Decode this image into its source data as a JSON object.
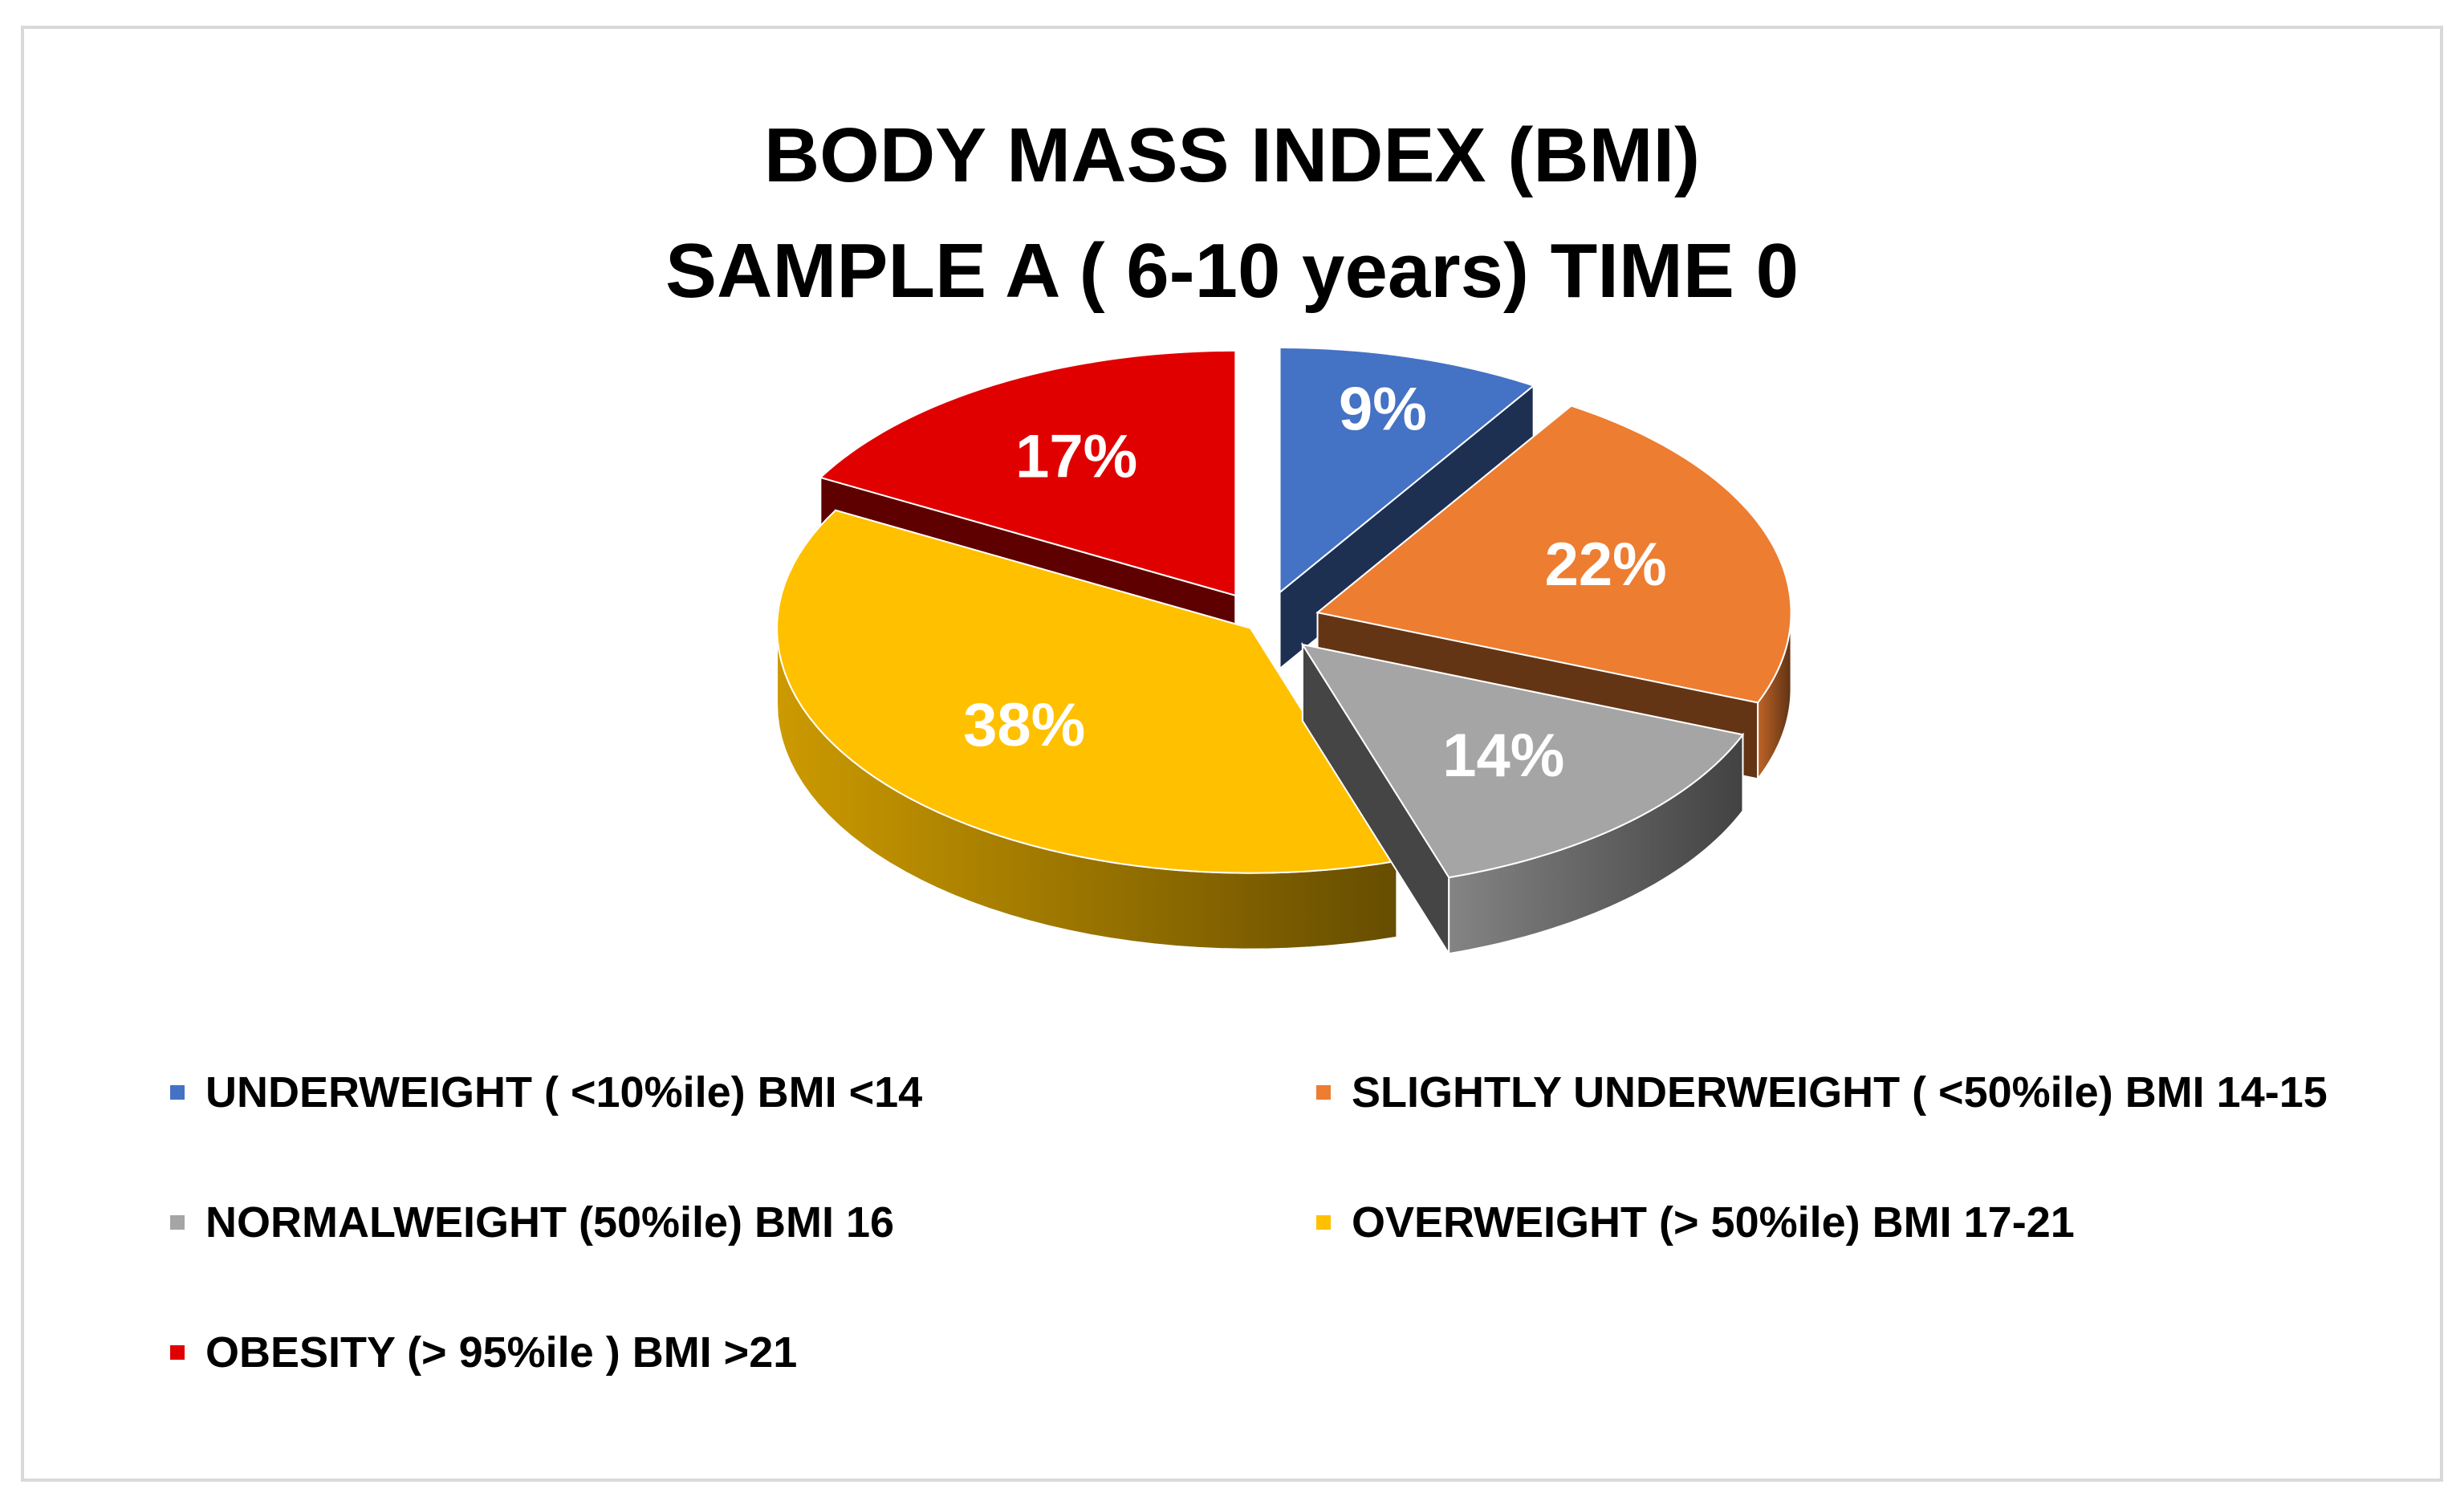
{
  "chart_data": {
    "type": "pie",
    "title": "BODY MASS INDEX (BMI)",
    "subtitle": "SAMPLE A ( 6-10 years) TIME 0",
    "legend_position": "bottom",
    "style": "3d-exploded",
    "slices": [
      {
        "label": "UNDERWEIGHT ( <10%ile)  BMI <14",
        "value": 9,
        "data_label": "9%",
        "color": "#4472c4"
      },
      {
        "label": "SLIGHTLY UNDERWEIGHT ( <50%ile) BMI 14-15",
        "value": 22,
        "data_label": "22%",
        "color": "#ed7d31"
      },
      {
        "label": "NORMALWEIGHT (50%ile) BMI 16",
        "value": 14,
        "data_label": "14%",
        "color": "#a5a5a5"
      },
      {
        "label": "OVERWEIGHT (> 50%ile) BMI 17-21",
        "value": 38,
        "data_label": "38%",
        "color": "#ffc000"
      },
      {
        "label": "OBESITY (> 95%ile ) BMI >21",
        "value": 17,
        "data_label": "17%",
        "color": "#e00000"
      }
    ]
  }
}
